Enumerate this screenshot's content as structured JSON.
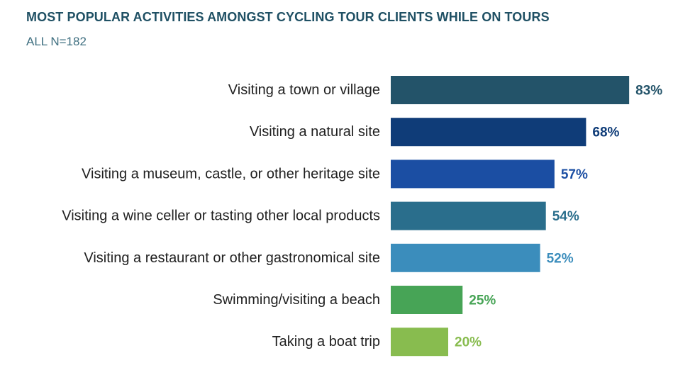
{
  "chart_data": {
    "type": "bar",
    "orientation": "horizontal",
    "title": "MOST POPULAR ACTIVITIES AMONGST CYCLING TOUR CLIENTS WHILE ON TOURS",
    "subtitle": "ALL N=182",
    "xlabel": "",
    "ylabel": "",
    "xlim": [
      0,
      100
    ],
    "grid": false,
    "legend": "none",
    "categories": [
      "Visiting a town or village",
      "Visiting a natural site",
      "Visiting a museum, castle, or other heritage site",
      "Visiting a wine celler or tasting other local products",
      "Visiting a restaurant or other gastronomical site",
      "Swimming/visiting a beach",
      "Taking a boat trip"
    ],
    "values": [
      83,
      68,
      57,
      54,
      52,
      25,
      20
    ],
    "value_labels": [
      "83%",
      "68%",
      "57%",
      "54%",
      "52%",
      "25%",
      "20%"
    ],
    "colors": [
      "#235369",
      "#0f3c78",
      "#1b4ea3",
      "#2a6e8c",
      "#3b8dbc",
      "#47a456",
      "#88bc4f"
    ]
  }
}
